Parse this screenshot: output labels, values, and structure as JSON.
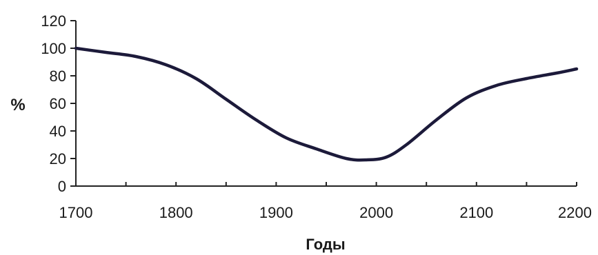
{
  "chart_data": {
    "type": "line",
    "title": "",
    "xlabel": "Годы",
    "ylabel": "%",
    "xlim": [
      1700,
      2200
    ],
    "ylim": [
      0,
      120
    ],
    "x_ticks": [
      1700,
      1800,
      1900,
      2000,
      2100,
      2200
    ],
    "y_ticks": [
      0,
      20,
      40,
      60,
      80,
      100,
      120
    ],
    "x_minor_step": 50,
    "grid": false,
    "legend": "none",
    "series": [
      {
        "color": "#1c1a3a",
        "points": [
          {
            "x": 1700,
            "y": 100
          },
          {
            "x": 1730,
            "y": 97
          },
          {
            "x": 1760,
            "y": 94
          },
          {
            "x": 1790,
            "y": 88
          },
          {
            "x": 1820,
            "y": 78
          },
          {
            "x": 1850,
            "y": 63
          },
          {
            "x": 1880,
            "y": 48
          },
          {
            "x": 1910,
            "y": 35
          },
          {
            "x": 1940,
            "y": 27
          },
          {
            "x": 1970,
            "y": 20
          },
          {
            "x": 1990,
            "y": 19
          },
          {
            "x": 2010,
            "y": 21
          },
          {
            "x": 2030,
            "y": 30
          },
          {
            "x": 2060,
            "y": 48
          },
          {
            "x": 2090,
            "y": 64
          },
          {
            "x": 2120,
            "y": 73
          },
          {
            "x": 2150,
            "y": 78
          },
          {
            "x": 2180,
            "y": 82
          },
          {
            "x": 2200,
            "y": 85
          }
        ]
      }
    ]
  }
}
